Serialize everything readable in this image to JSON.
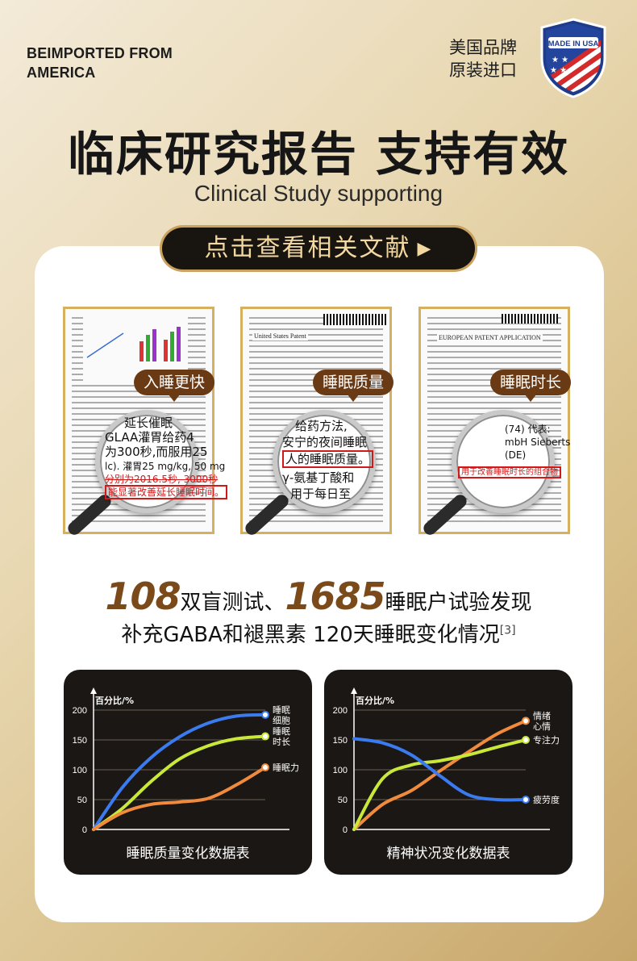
{
  "top": {
    "en_line1": "BEIMPORTED FROM",
    "en_line2": "AMERICA",
    "cn_line1": "美国品牌",
    "cn_line2": "原装进口",
    "badge_text": "MADE IN USA"
  },
  "headline": "临床研究报告 支持有效",
  "subhead": "Clinical Study supporting",
  "cta": {
    "label": "点击查看相关文献",
    "arrow": "▶"
  },
  "documents": [
    {
      "tag": "入睡更快",
      "lens_lines": [
        "延长催眠",
        "GLAA灌胃给药4",
        "为300秒,而服用25",
        "lc). 灌胃25 mg/kg, 50 mg",
        "分别为2016.5秒, 3000秒",
        "能显著改善延长睡眠时间。"
      ]
    },
    {
      "tag": "睡眠质量",
      "header": "United States Patent",
      "lens_lines": [
        "给药方法,",
        "安宁的夜间睡眠",
        "人的睡眠质量。",
        "γ-氨基丁酸和",
        "用于每日至"
      ]
    },
    {
      "tag": "睡眠时长",
      "header": "EUROPEAN PATENT APPLICATION",
      "lens_lines": [
        "(74) 代表:",
        "mbH Sieberts",
        "(DE)",
        "用于改善睡眠时长的组合物"
      ]
    }
  ],
  "stats": {
    "num1": "108",
    "text1": "双盲测试、",
    "num2": "1685",
    "text2": "睡眠户试验发现",
    "line2": "补充GABA和褪黑素 120天睡眠变化情况",
    "ref": "[3]"
  },
  "colors": {
    "blue": "#3b7bf0",
    "yellow": "#c9e83a",
    "orange": "#f08a3c",
    "dark": "#1b1714"
  },
  "chart_data": [
    {
      "type": "line",
      "title": "睡眠质量变化数据表",
      "ylabel": "百分比/%",
      "ylim": [
        0,
        200
      ],
      "yticks": [
        0,
        50,
        100,
        150,
        200
      ],
      "x": [
        0,
        1,
        2,
        3,
        4,
        5,
        6
      ],
      "series": [
        {
          "name": "睡眠细胞",
          "color": "#3b7bf0",
          "values": [
            0,
            70,
            120,
            155,
            178,
            190,
            192
          ]
        },
        {
          "name": "睡眠时长",
          "color": "#c9e83a",
          "values": [
            0,
            35,
            80,
            118,
            140,
            152,
            156
          ]
        },
        {
          "name": "睡眠力",
          "color": "#f08a3c",
          "values": [
            0,
            28,
            42,
            46,
            52,
            75,
            104
          ]
        }
      ]
    },
    {
      "type": "line",
      "title": "精神状况变化数据表",
      "ylabel": "百分比/%",
      "ylim": [
        0,
        200
      ],
      "yticks": [
        0,
        50,
        100,
        150,
        200
      ],
      "x": [
        0,
        1,
        2,
        3,
        4,
        5,
        6
      ],
      "series": [
        {
          "name": "情绪心情",
          "color": "#f08a3c",
          "values": [
            0,
            42,
            65,
            98,
            130,
            160,
            182
          ]
        },
        {
          "name": "专注力",
          "color": "#c9e83a",
          "values": [
            0,
            85,
            108,
            115,
            125,
            138,
            150
          ]
        },
        {
          "name": "疲劳度",
          "color": "#3b7bf0",
          "values": [
            152,
            145,
            125,
            90,
            58,
            50,
            50
          ]
        }
      ]
    }
  ]
}
